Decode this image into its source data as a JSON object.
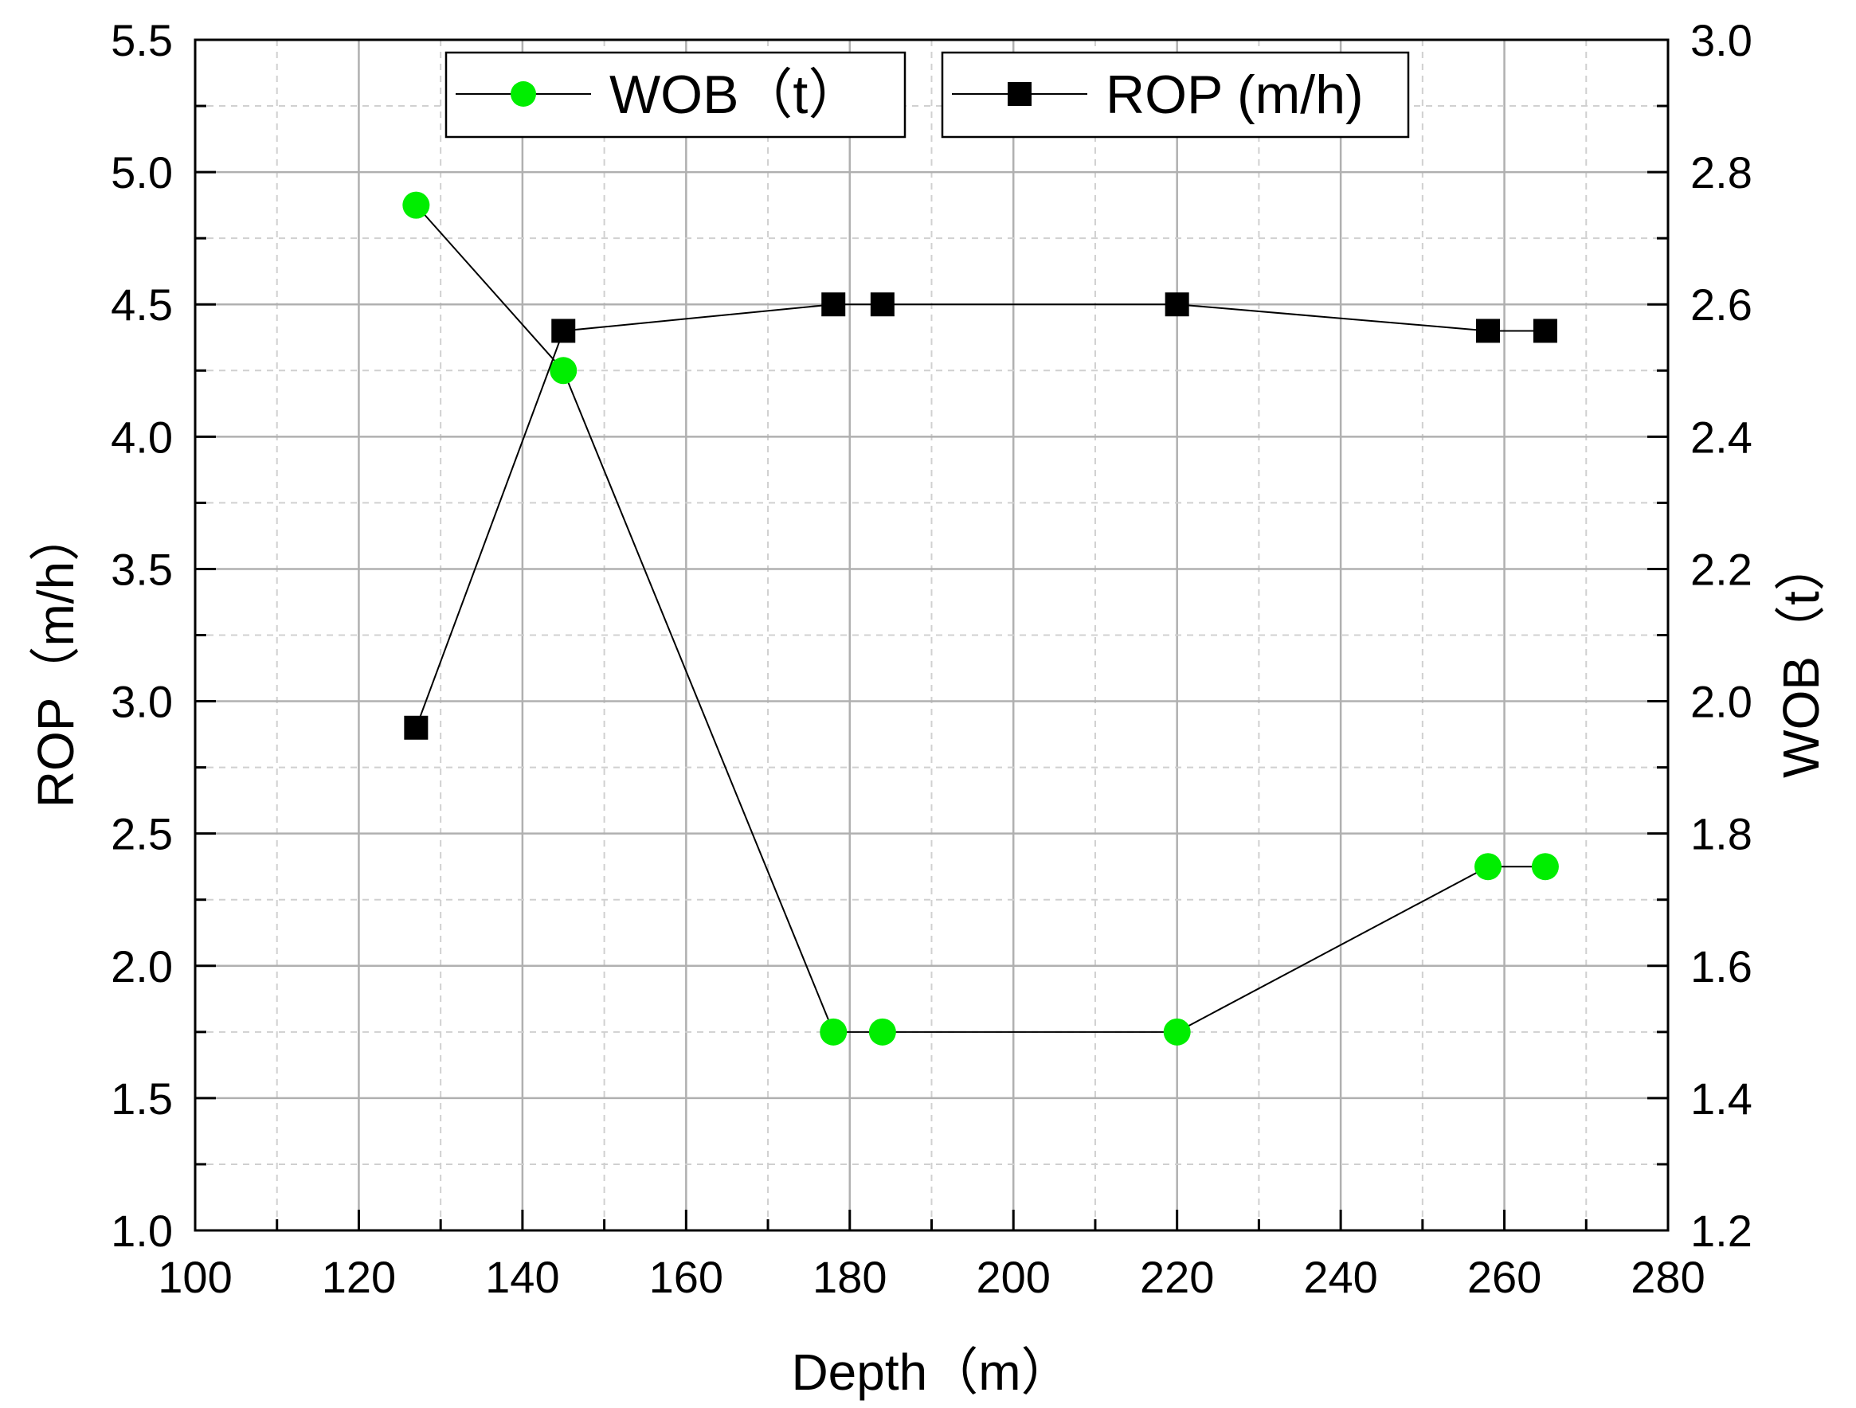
{
  "chart_data": {
    "type": "line",
    "title": "",
    "xlabel": "Depth（m）",
    "ylabel_left": "ROP（m/h）",
    "ylabel_right": "WOB（t）",
    "xlim": [
      100,
      280
    ],
    "ylim_left": [
      1.0,
      5.5
    ],
    "ylim_right": [
      1.2,
      3.0
    ],
    "x_ticks": [
      100,
      120,
      140,
      160,
      180,
      200,
      220,
      240,
      260,
      280
    ],
    "y_left_ticks": [
      "1.0",
      "1.5",
      "2.0",
      "2.5",
      "3.0",
      "3.5",
      "4.0",
      "4.5",
      "5.0",
      "5.5"
    ],
    "y_right_ticks": [
      "1.2",
      "1.4",
      "1.6",
      "1.8",
      "2.0",
      "2.2",
      "2.4",
      "2.6",
      "2.8",
      "3.0"
    ],
    "grid": true,
    "legend_position": "top-center",
    "series": [
      {
        "name": "WOB（t）",
        "axis": "right",
        "marker": "circle",
        "color": "#00ee00",
        "line_color": "#000000",
        "x": [
          127,
          145,
          178,
          184,
          220,
          258,
          265
        ],
        "values": [
          2.75,
          2.5,
          1.5,
          1.5,
          1.5,
          1.75,
          1.75
        ]
      },
      {
        "name": "ROP (m/h)",
        "axis": "left",
        "marker": "square",
        "color": "#000000",
        "line_color": "#000000",
        "x": [
          127,
          145,
          178,
          184,
          220,
          258,
          265
        ],
        "values": [
          2.9,
          4.4,
          4.5,
          4.5,
          4.5,
          4.4,
          4.4
        ]
      }
    ]
  }
}
